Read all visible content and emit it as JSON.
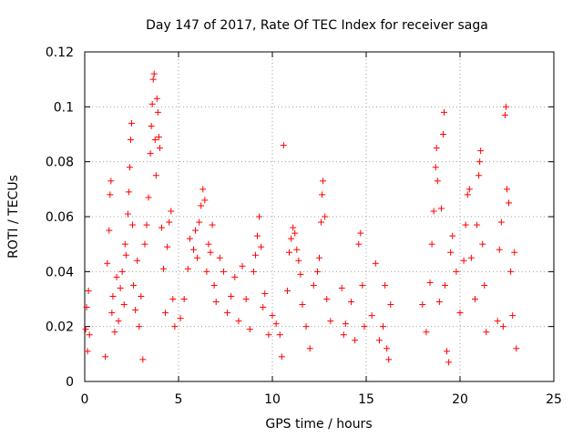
{
  "chart_data": {
    "type": "scatter",
    "title": "Day 147 of 2017, Rate Of TEC Index for receiver saga",
    "xlabel": "GPS time / hours",
    "ylabel": "ROTI / TECUs",
    "xlim": [
      0,
      25
    ],
    "ylim": [
      0,
      0.12
    ],
    "xticks": [
      "0",
      "5",
      "10",
      "15",
      "20",
      "25"
    ],
    "yticks": [
      "0",
      "0.02",
      "0.04",
      "0.06",
      "0.08",
      "0.1",
      "0.12"
    ],
    "grid": true,
    "marker": "plus",
    "color": "#ff0000",
    "series": [
      {
        "name": "",
        "points": [
          [
            0.05,
            0.019
          ],
          [
            0.1,
            0.027
          ],
          [
            0.15,
            0.011
          ],
          [
            0.2,
            0.033
          ],
          [
            0.25,
            0.017
          ],
          [
            1.1,
            0.009
          ],
          [
            1.2,
            0.043
          ],
          [
            1.3,
            0.055
          ],
          [
            1.35,
            0.068
          ],
          [
            1.4,
            0.073
          ],
          [
            1.45,
            0.025
          ],
          [
            1.5,
            0.031
          ],
          [
            1.6,
            0.018
          ],
          [
            1.7,
            0.038
          ],
          [
            1.8,
            0.022
          ],
          [
            1.9,
            0.034
          ],
          [
            2.0,
            0.04
          ],
          [
            2.1,
            0.028
          ],
          [
            2.15,
            0.05
          ],
          [
            2.2,
            0.046
          ],
          [
            2.3,
            0.061
          ],
          [
            2.35,
            0.069
          ],
          [
            2.4,
            0.078
          ],
          [
            2.45,
            0.088
          ],
          [
            2.5,
            0.094
          ],
          [
            2.55,
            0.057
          ],
          [
            2.6,
            0.035
          ],
          [
            2.7,
            0.026
          ],
          [
            2.8,
            0.044
          ],
          [
            2.9,
            0.02
          ],
          [
            3.0,
            0.031
          ],
          [
            3.1,
            0.008
          ],
          [
            3.2,
            0.05
          ],
          [
            3.3,
            0.057
          ],
          [
            3.4,
            0.067
          ],
          [
            3.5,
            0.083
          ],
          [
            3.55,
            0.093
          ],
          [
            3.6,
            0.101
          ],
          [
            3.65,
            0.11
          ],
          [
            3.7,
            0.112
          ],
          [
            3.75,
            0.088
          ],
          [
            3.8,
            0.075
          ],
          [
            3.85,
            0.103
          ],
          [
            3.9,
            0.098
          ],
          [
            3.95,
            0.089
          ],
          [
            4.0,
            0.085
          ],
          [
            4.1,
            0.056
          ],
          [
            4.2,
            0.041
          ],
          [
            4.3,
            0.025
          ],
          [
            4.4,
            0.049
          ],
          [
            4.5,
            0.058
          ],
          [
            4.6,
            0.062
          ],
          [
            4.7,
            0.03
          ],
          [
            4.8,
            0.02
          ],
          [
            5.1,
            0.023
          ],
          [
            5.3,
            0.03
          ],
          [
            5.5,
            0.041
          ],
          [
            5.6,
            0.052
          ],
          [
            5.8,
            0.048
          ],
          [
            5.9,
            0.055
          ],
          [
            6.0,
            0.045
          ],
          [
            6.1,
            0.058
          ],
          [
            6.2,
            0.064
          ],
          [
            6.3,
            0.07
          ],
          [
            6.4,
            0.066
          ],
          [
            6.5,
            0.04
          ],
          [
            6.6,
            0.05
          ],
          [
            6.7,
            0.047
          ],
          [
            6.8,
            0.057
          ],
          [
            6.9,
            0.035
          ],
          [
            7.0,
            0.029
          ],
          [
            7.2,
            0.045
          ],
          [
            7.4,
            0.04
          ],
          [
            7.6,
            0.025
          ],
          [
            7.8,
            0.031
          ],
          [
            8.0,
            0.038
          ],
          [
            8.2,
            0.022
          ],
          [
            8.4,
            0.042
          ],
          [
            8.6,
            0.03
          ],
          [
            8.8,
            0.019
          ],
          [
            9.0,
            0.04
          ],
          [
            9.1,
            0.046
          ],
          [
            9.2,
            0.053
          ],
          [
            9.3,
            0.06
          ],
          [
            9.4,
            0.049
          ],
          [
            9.5,
            0.027
          ],
          [
            9.6,
            0.032
          ],
          [
            9.8,
            0.017
          ],
          [
            10.0,
            0.024
          ],
          [
            10.2,
            0.021
          ],
          [
            10.4,
            0.017
          ],
          [
            10.5,
            0.009
          ],
          [
            10.6,
            0.086
          ],
          [
            10.8,
            0.033
          ],
          [
            10.9,
            0.047
          ],
          [
            11.0,
            0.052
          ],
          [
            11.1,
            0.056
          ],
          [
            11.2,
            0.054
          ],
          [
            11.3,
            0.048
          ],
          [
            11.4,
            0.044
          ],
          [
            11.5,
            0.039
          ],
          [
            11.6,
            0.028
          ],
          [
            11.8,
            0.02
          ],
          [
            12.0,
            0.012
          ],
          [
            12.2,
            0.035
          ],
          [
            12.4,
            0.04
          ],
          [
            12.5,
            0.045
          ],
          [
            12.6,
            0.058
          ],
          [
            12.65,
            0.068
          ],
          [
            12.7,
            0.073
          ],
          [
            12.8,
            0.06
          ],
          [
            12.9,
            0.03
          ],
          [
            13.1,
            0.022
          ],
          [
            13.7,
            0.034
          ],
          [
            13.8,
            0.017
          ],
          [
            13.9,
            0.021
          ],
          [
            14.2,
            0.029
          ],
          [
            14.4,
            0.015
          ],
          [
            14.6,
            0.05
          ],
          [
            14.7,
            0.054
          ],
          [
            14.8,
            0.035
          ],
          [
            14.9,
            0.02
          ],
          [
            15.3,
            0.024
          ],
          [
            15.5,
            0.043
          ],
          [
            15.7,
            0.015
          ],
          [
            15.9,
            0.02
          ],
          [
            16.0,
            0.035
          ],
          [
            16.1,
            0.012
          ],
          [
            16.2,
            0.008
          ],
          [
            16.3,
            0.028
          ],
          [
            18.0,
            0.028
          ],
          [
            18.2,
            0.018
          ],
          [
            18.4,
            0.036
          ],
          [
            18.5,
            0.05
          ],
          [
            18.6,
            0.062
          ],
          [
            18.7,
            0.078
          ],
          [
            18.75,
            0.085
          ],
          [
            18.8,
            0.073
          ],
          [
            18.9,
            0.029
          ],
          [
            19.0,
            0.063
          ],
          [
            19.1,
            0.09
          ],
          [
            19.15,
            0.098
          ],
          [
            19.2,
            0.035
          ],
          [
            19.3,
            0.011
          ],
          [
            19.4,
            0.007
          ],
          [
            19.5,
            0.047
          ],
          [
            19.6,
            0.053
          ],
          [
            19.8,
            0.04
          ],
          [
            20.0,
            0.025
          ],
          [
            20.2,
            0.044
          ],
          [
            20.3,
            0.057
          ],
          [
            20.4,
            0.068
          ],
          [
            20.5,
            0.07
          ],
          [
            20.6,
            0.045
          ],
          [
            20.8,
            0.03
          ],
          [
            20.9,
            0.057
          ],
          [
            21.0,
            0.075
          ],
          [
            21.05,
            0.08
          ],
          [
            21.1,
            0.084
          ],
          [
            21.2,
            0.05
          ],
          [
            21.3,
            0.035
          ],
          [
            21.4,
            0.018
          ],
          [
            22.0,
            0.022
          ],
          [
            22.1,
            0.048
          ],
          [
            22.2,
            0.058
          ],
          [
            22.3,
            0.02
          ],
          [
            22.4,
            0.097
          ],
          [
            22.45,
            0.1
          ],
          [
            22.5,
            0.07
          ],
          [
            22.6,
            0.065
          ],
          [
            22.7,
            0.04
          ],
          [
            22.8,
            0.024
          ],
          [
            22.9,
            0.047
          ],
          [
            23.0,
            0.012
          ]
        ]
      }
    ]
  }
}
